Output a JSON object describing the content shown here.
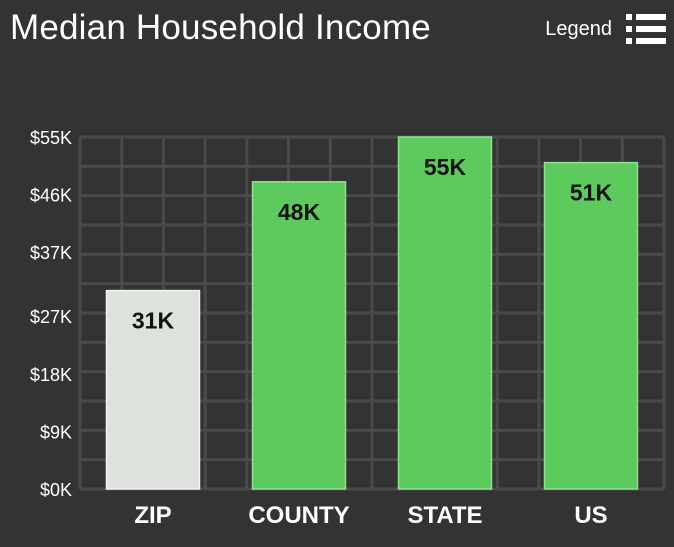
{
  "header": {
    "title": "Median Household Income",
    "legend_label": "Legend",
    "legend_icon": "list-menu-icon"
  },
  "colors": {
    "background": "#333333",
    "grid": "#4a4a4a",
    "highlight_bar": "#dde3dc",
    "bar": "#5dca5d",
    "bar_border": "#8ee08e",
    "axis_text": "#ffffff",
    "data_label": "#111111"
  },
  "chart_data": {
    "type": "bar",
    "title": "Median Household Income",
    "categories": [
      "ZIP",
      "COUNTY",
      "STATE",
      "US"
    ],
    "values": [
      31,
      48,
      55,
      51
    ],
    "data_labels": [
      "31K",
      "48K",
      "55K",
      "51K"
    ],
    "ylim": [
      0,
      55
    ],
    "yticks": [
      0,
      9,
      18,
      27,
      37,
      46,
      55
    ],
    "ytick_labels": [
      "$0K",
      "$9K",
      "$18K",
      "$27K",
      "$37K",
      "$46K",
      "$55K"
    ],
    "grid": true,
    "highlight_category": "ZIP"
  }
}
